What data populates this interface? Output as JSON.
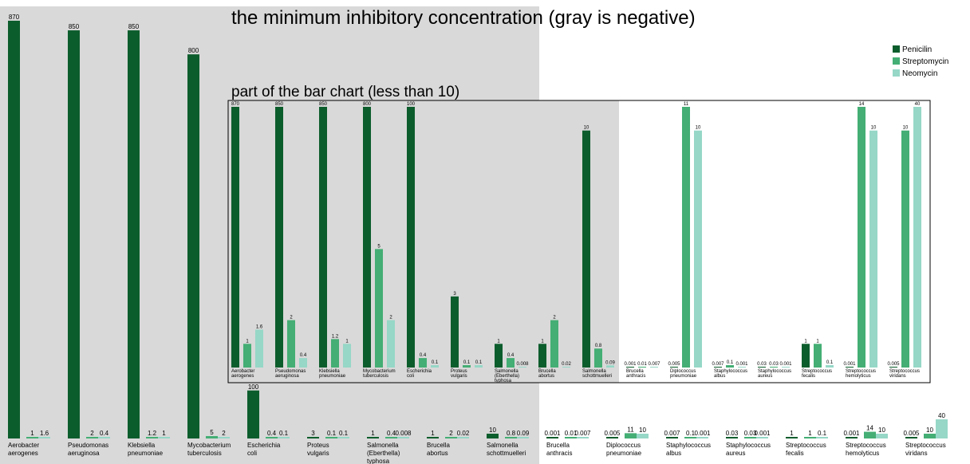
{
  "chart_data": {
    "type": "bar",
    "title": "the minimum inhibitory concentration (gray is negative)",
    "inset_title": "part of the bar chart (less than 10)",
    "colors": {
      "Penicilin": "#0c5d2c",
      "Streptomycin": "#44ae74",
      "Neomycin": "#96d7c7",
      "negative_bg": "#d9d9d9"
    },
    "legend_position": "top-right",
    "categories": [
      {
        "name": [
          "Aerobacter",
          "aerogenes"
        ],
        "gram": "negative"
      },
      {
        "name": [
          "Pseudomonas",
          "aeruginosa"
        ],
        "gram": "negative"
      },
      {
        "name": [
          "Klebsiella",
          "pneumoniae"
        ],
        "gram": "negative"
      },
      {
        "name": [
          "Mycobacterium",
          "tuberculosis"
        ],
        "gram": "negative"
      },
      {
        "name": [
          "Escherichia",
          "coli"
        ],
        "gram": "negative"
      },
      {
        "name": [
          "Proteus",
          "vulgaris"
        ],
        "gram": "negative"
      },
      {
        "name": [
          "Salmonella",
          "(Eberthella)",
          "typhosa"
        ],
        "gram": "negative"
      },
      {
        "name": [
          "Brucella",
          "abortus"
        ],
        "gram": "negative"
      },
      {
        "name": [
          "Salmonella",
          "schottmuelleri"
        ],
        "gram": "negative"
      },
      {
        "name": [
          "Brucella",
          "anthracis"
        ],
        "gram": "positive"
      },
      {
        "name": [
          "Diplococcus",
          "pneumoniae"
        ],
        "gram": "positive"
      },
      {
        "name": [
          "Staphylococcus",
          "albus"
        ],
        "gram": "positive"
      },
      {
        "name": [
          "Staphylococcus",
          "aureus"
        ],
        "gram": "positive"
      },
      {
        "name": [
          "Streptococcus",
          "fecalis"
        ],
        "gram": "positive"
      },
      {
        "name": [
          "Streptococcus",
          "hemolyticus"
        ],
        "gram": "positive"
      },
      {
        "name": [
          "Streptococcus",
          "viridans"
        ],
        "gram": "positive"
      }
    ],
    "series": [
      {
        "name": "Penicilin",
        "values": [
          870,
          850,
          850,
          800,
          100,
          3,
          1,
          1,
          10,
          0.001,
          0.005,
          0.007,
          0.03,
          1,
          0.001,
          0.005
        ]
      },
      {
        "name": "Streptomycin",
        "values": [
          1,
          2,
          1.2,
          5,
          0.4,
          0.1,
          0.4,
          2,
          0.8,
          0.01,
          11,
          0.1,
          0.03,
          1,
          14,
          10
        ]
      },
      {
        "name": "Neomycin",
        "values": [
          1.6,
          0.4,
          1,
          2,
          0.1,
          0.1,
          0.008,
          0.02,
          0.09,
          0.007,
          10,
          0.001,
          0.001,
          0.1,
          10,
          40
        ]
      }
    ],
    "main_labels": [
      [
        "870",
        "1",
        "1.6"
      ],
      [
        "850",
        "2",
        "0.4"
      ],
      [
        "850",
        "1.2",
        "1"
      ],
      [
        "800",
        "5",
        "2"
      ],
      [
        "100",
        "0.4",
        "0.1"
      ],
      [
        "3",
        "0.1",
        "0.1"
      ],
      [
        "1",
        "0.4",
        "0.008"
      ],
      [
        "1",
        "2",
        "0.02"
      ],
      [
        "10",
        "0.8",
        "0.09"
      ],
      [
        "0.001",
        "0.01",
        "0.007"
      ],
      [
        "0.005",
        "11",
        "10"
      ],
      [
        "0.007",
        "0.1",
        "0.001"
      ],
      [
        "0.03",
        "0.03",
        "0.001"
      ],
      [
        "1",
        "1",
        "0.1"
      ],
      [
        "0.001",
        "14",
        "10"
      ],
      [
        "0.005",
        "10",
        "40"
      ]
    ],
    "inset_labels": [
      [
        "870",
        "1",
        "1.6"
      ],
      [
        "850",
        "2",
        "0.4"
      ],
      [
        "850",
        "1.2",
        "1"
      ],
      [
        "800",
        "5",
        "2"
      ],
      [
        "100",
        "0.4",
        "0.1"
      ],
      [
        "3",
        "0.1",
        "0.1"
      ],
      [
        "1",
        "0.4",
        "0.008"
      ],
      [
        "1",
        "2",
        "0.02"
      ],
      [
        "10",
        "0.8",
        "0.09"
      ],
      [
        "0.001",
        "0.01",
        "0.007"
      ],
      [
        "0.005",
        "11",
        "10"
      ],
      [
        "0.007",
        "0.1",
        "0.001"
      ],
      [
        "0.03",
        "0.03",
        "0.001"
      ],
      [
        "1",
        "1",
        "0.1"
      ],
      [
        "0.001",
        "14",
        "10"
      ],
      [
        "0.005",
        "10",
        "40"
      ]
    ],
    "main_ylim": [
      0,
      900
    ],
    "inset_ylim": [
      0,
      11
    ],
    "grid": false
  }
}
